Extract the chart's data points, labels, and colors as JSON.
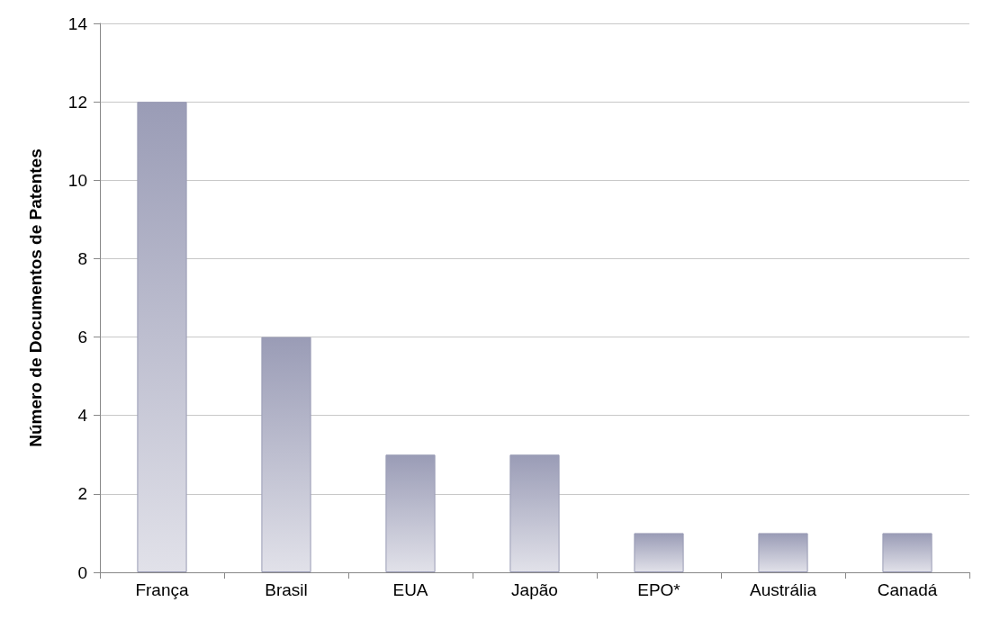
{
  "chart_data": {
    "type": "bar",
    "ylabel": "Número de Documentos de Patentes",
    "categories": [
      "França",
      "Brasil",
      "EUA",
      "Japão",
      "EPO*",
      "Austrália",
      "Canadá"
    ],
    "values": [
      12,
      6,
      3,
      3,
      1,
      1,
      1
    ],
    "color": "#9a9cb6",
    "ylim": [
      0,
      14
    ],
    "yticks": [
      0,
      2,
      4,
      6,
      8,
      10,
      12,
      14
    ],
    "grid": "y"
  }
}
